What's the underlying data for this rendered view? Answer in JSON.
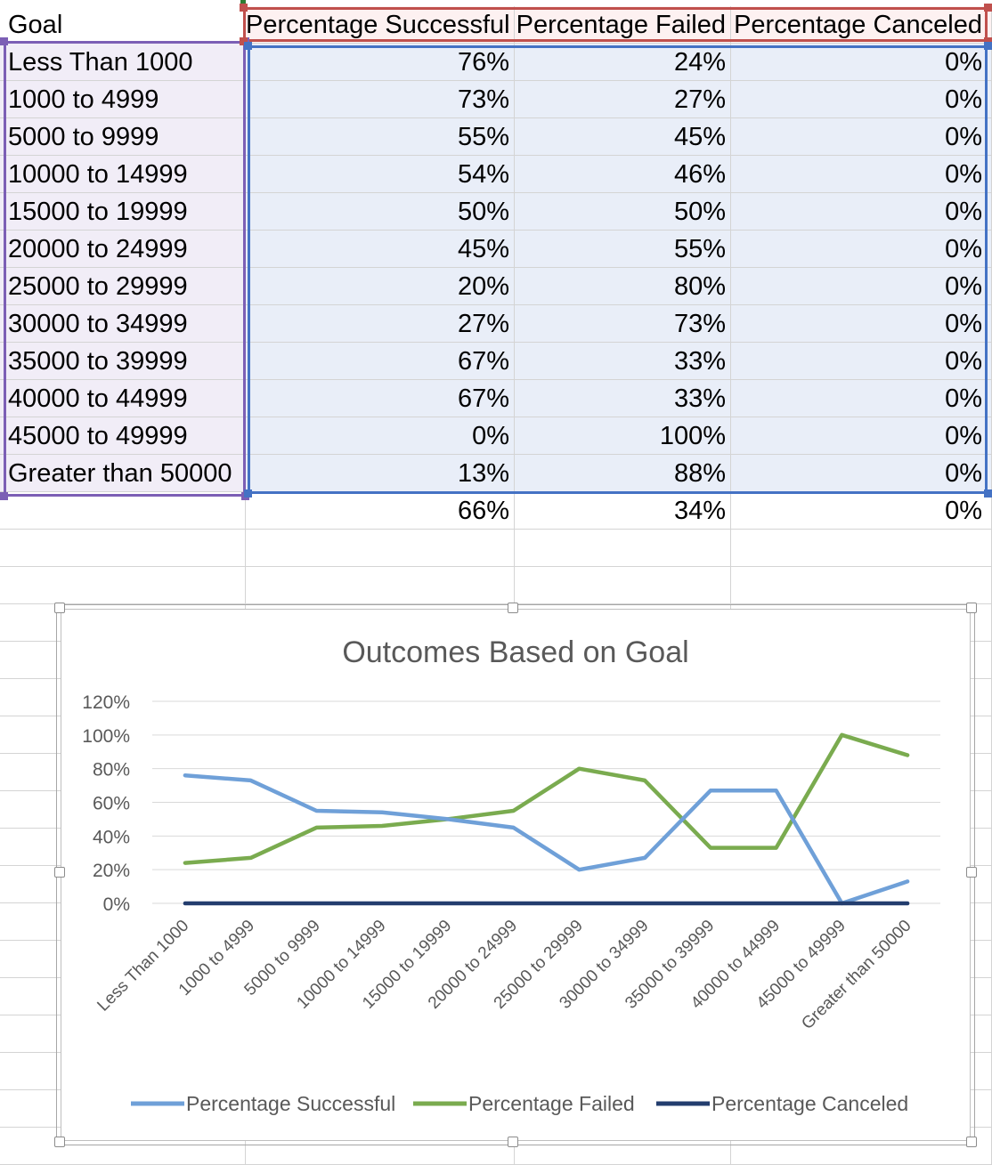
{
  "table": {
    "headers": [
      "Goal",
      "Percentage Successful",
      "Percentage Failed",
      "Percentage Canceled"
    ],
    "rows": [
      [
        "Less Than 1000",
        "76%",
        "24%",
        "0%"
      ],
      [
        "1000 to 4999",
        "73%",
        "27%",
        "0%"
      ],
      [
        "5000 to 9999",
        "55%",
        "45%",
        "0%"
      ],
      [
        "10000 to 14999",
        "54%",
        "46%",
        "0%"
      ],
      [
        "15000 to 19999",
        "50%",
        "50%",
        "0%"
      ],
      [
        "20000 to 24999",
        "45%",
        "55%",
        "0%"
      ],
      [
        "25000 to 29999",
        "20%",
        "80%",
        "0%"
      ],
      [
        "30000 to 34999",
        "27%",
        "73%",
        "0%"
      ],
      [
        "35000 to 39999",
        "67%",
        "33%",
        "0%"
      ],
      [
        "40000 to 44999",
        "67%",
        "33%",
        "0%"
      ],
      [
        "45000 to 49999",
        "0%",
        "100%",
        "0%"
      ],
      [
        "Greater than 50000",
        "13%",
        "88%",
        "0%"
      ]
    ],
    "totals": [
      "",
      "66%",
      "34%",
      "0%"
    ]
  },
  "colors": {
    "successful": "#6fa0d8",
    "failed": "#7aab4f",
    "canceled": "#233d6e",
    "gridline": "#d9d9d9",
    "title": "#595959",
    "axis_text": "#595959"
  },
  "chart_data": {
    "type": "line",
    "title": "Outcomes Based on Goal",
    "xlabel": "",
    "ylabel": "",
    "categories": [
      "Less Than 1000",
      "1000 to 4999",
      "5000 to 9999",
      "10000 to 14999",
      "15000 to 19999",
      "20000 to 24999",
      "25000 to 29999",
      "30000 to 34999",
      "35000 to 39999",
      "40000 to 44999",
      "45000 to 49999",
      "Greater than 50000"
    ],
    "series": [
      {
        "name": "Percentage Successful",
        "values": [
          76,
          73,
          55,
          54,
          50,
          45,
          20,
          27,
          67,
          67,
          0,
          13
        ]
      },
      {
        "name": "Percentage Failed",
        "values": [
          24,
          27,
          45,
          46,
          50,
          55,
          80,
          73,
          33,
          33,
          100,
          88
        ]
      },
      {
        "name": "Percentage Canceled",
        "values": [
          0,
          0,
          0,
          0,
          0,
          0,
          0,
          0,
          0,
          0,
          0,
          0
        ]
      }
    ],
    "ylim": [
      0,
      120
    ],
    "yticks": [
      "0%",
      "20%",
      "40%",
      "60%",
      "80%",
      "100%",
      "120%"
    ],
    "grid": true,
    "legend": "bottom"
  }
}
